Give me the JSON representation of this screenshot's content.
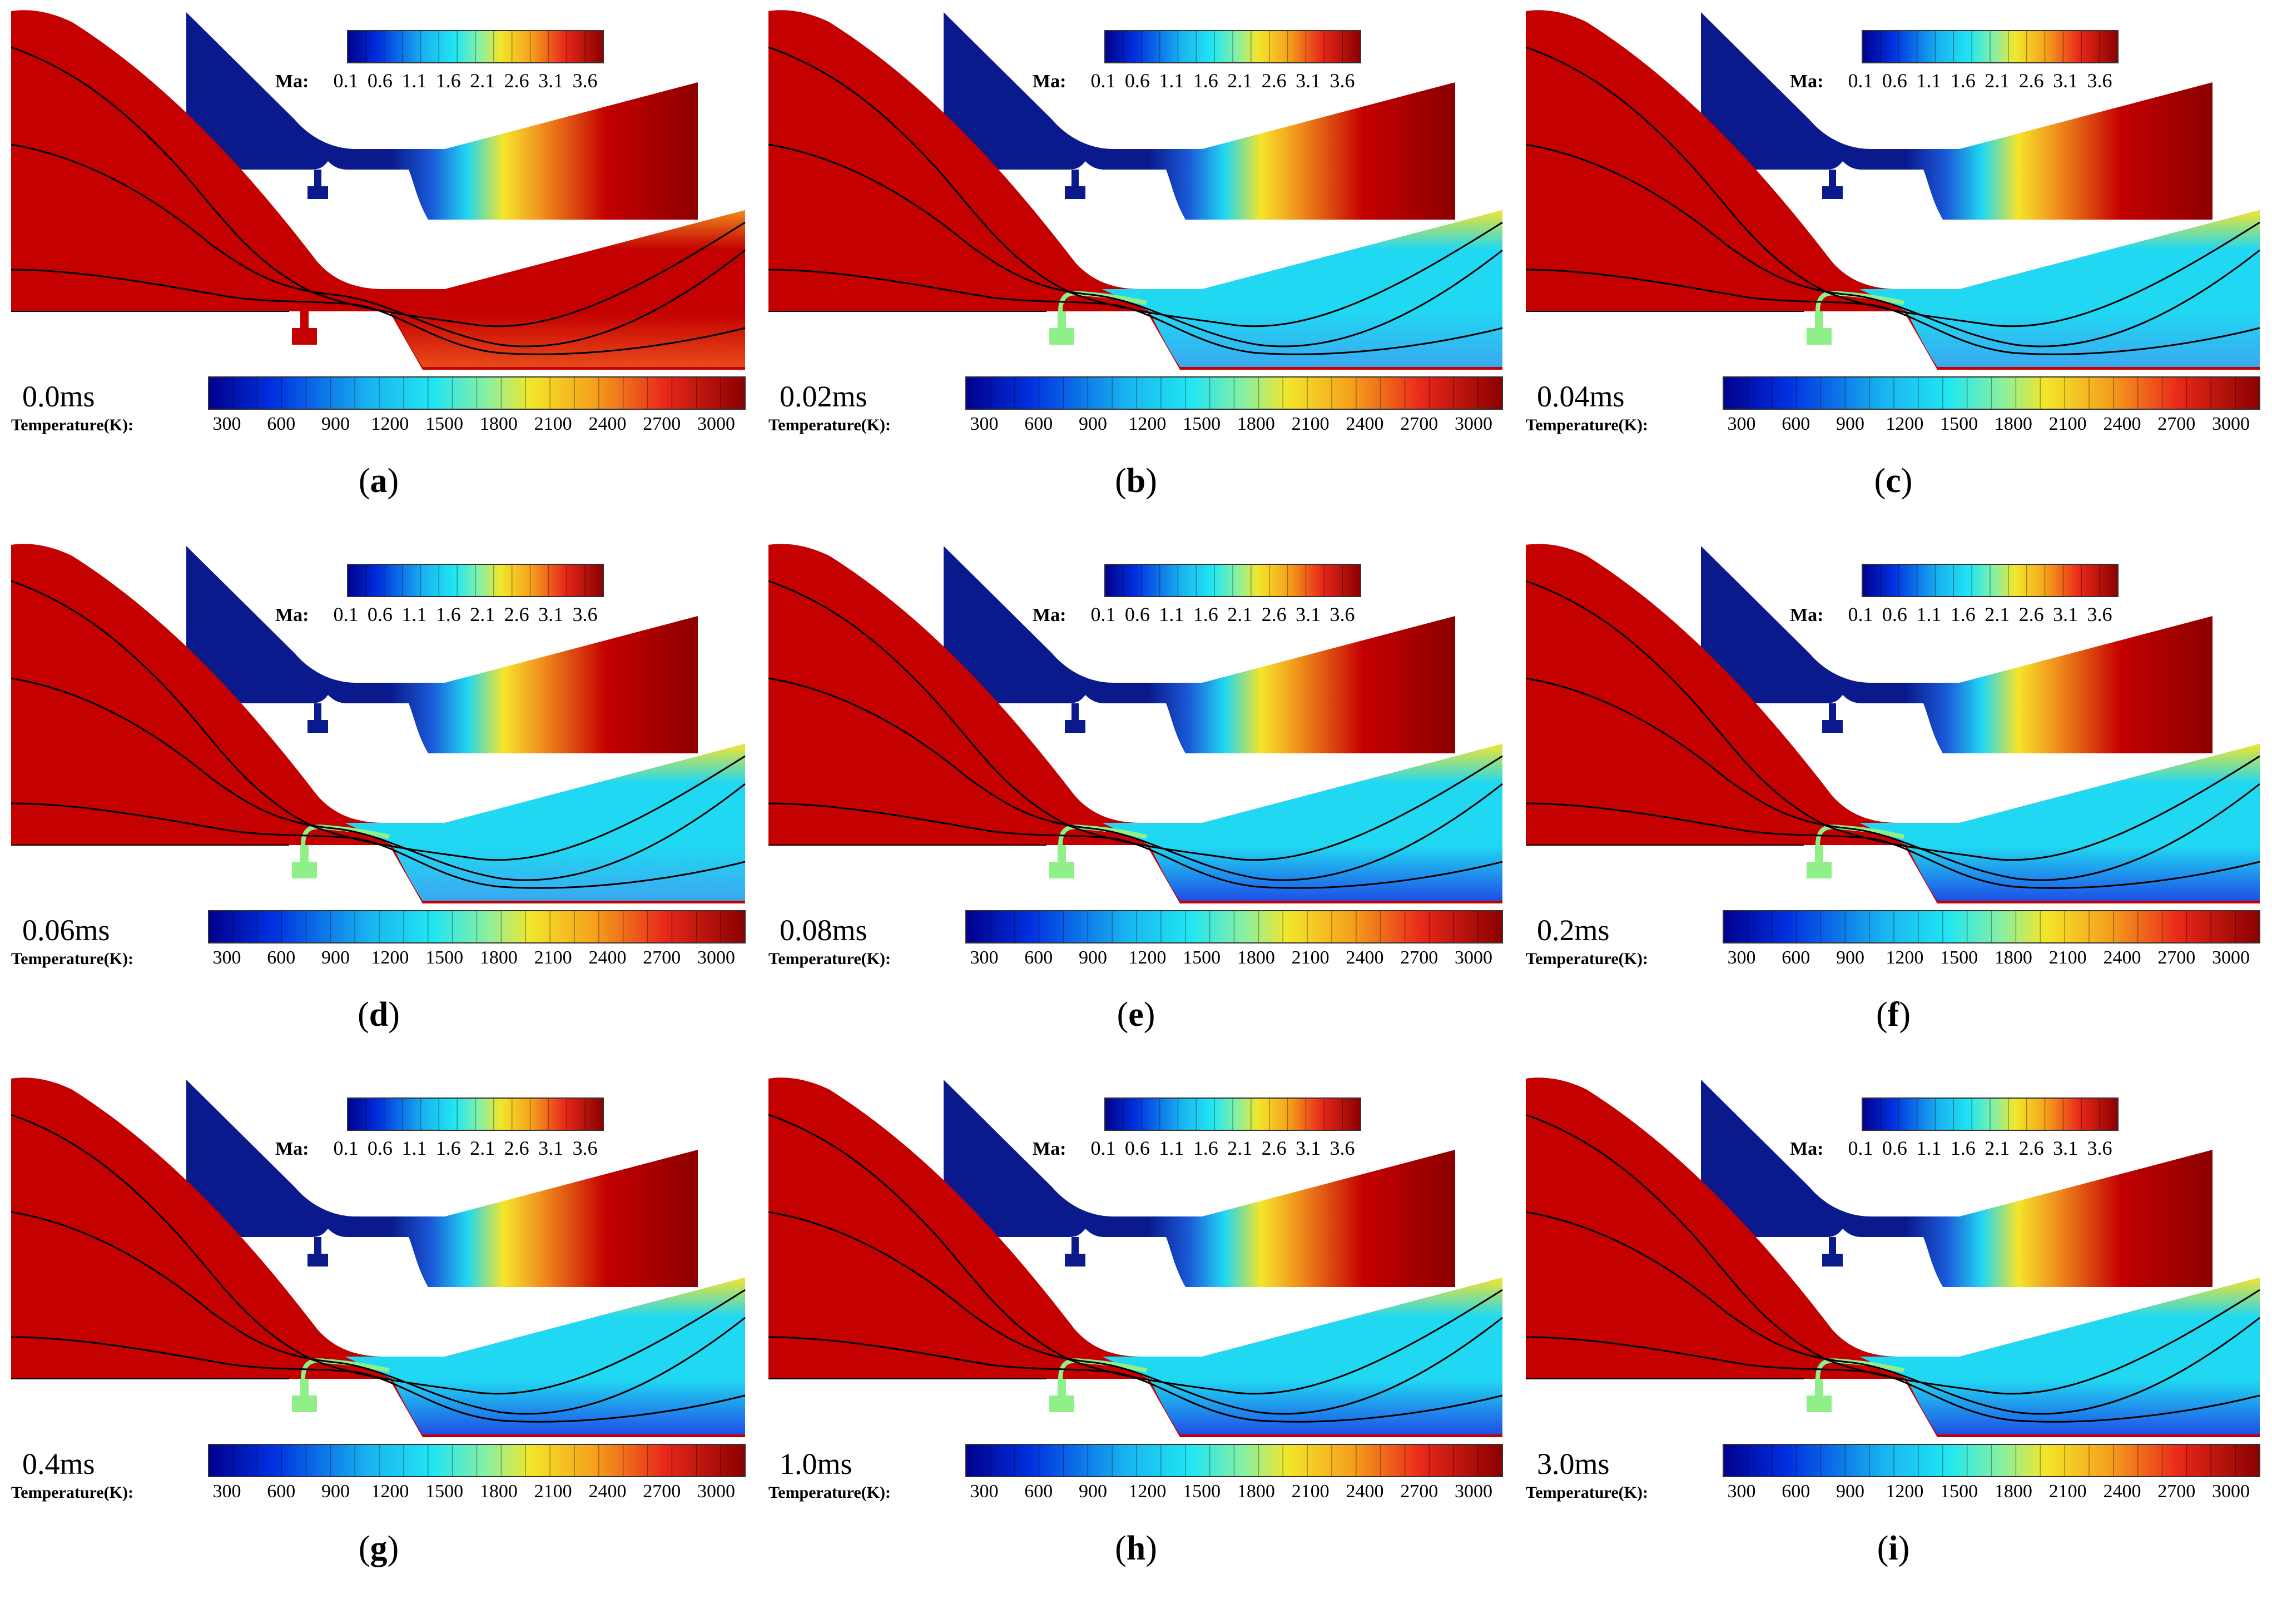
{
  "colorbars": {
    "temperature": {
      "title": "Temperature(K):",
      "ticks": [
        "300",
        "600",
        "900",
        "1200",
        "1500",
        "1800",
        "2100",
        "2400",
        "2700",
        "3000"
      ]
    },
    "mach": {
      "title": "Ma:",
      "ticks": [
        "0.1",
        "0.6",
        "1.1",
        "1.6",
        "2.1",
        "2.6",
        "3.1",
        "3.6"
      ]
    }
  },
  "colors": {
    "flame_red": "#c40000",
    "mach_blue": "#0a1a8c",
    "cold_blue": "#1e50e6",
    "cyan": "#21d8f2",
    "yellow": "#f5e52a",
    "orange": "#f08a1c",
    "fuel_green": "#8ff08a"
  },
  "panels": [
    {
      "caption": "a",
      "time": "0.0ms",
      "cooling": 0.0
    },
    {
      "caption": "b",
      "time": "0.02ms",
      "cooling": 0.45
    },
    {
      "caption": "c",
      "time": "0.04ms",
      "cooling": 0.65
    },
    {
      "caption": "d",
      "time": "0.06ms",
      "cooling": 0.78
    },
    {
      "caption": "e",
      "time": "0.08ms",
      "cooling": 0.85
    },
    {
      "caption": "f",
      "time": "0.2ms",
      "cooling": 0.9
    },
    {
      "caption": "g",
      "time": "0.4ms",
      "cooling": 0.94
    },
    {
      "caption": "h",
      "time": "1.0ms",
      "cooling": 0.97
    },
    {
      "caption": "i",
      "time": "3.0ms",
      "cooling": 1.0
    }
  ]
}
